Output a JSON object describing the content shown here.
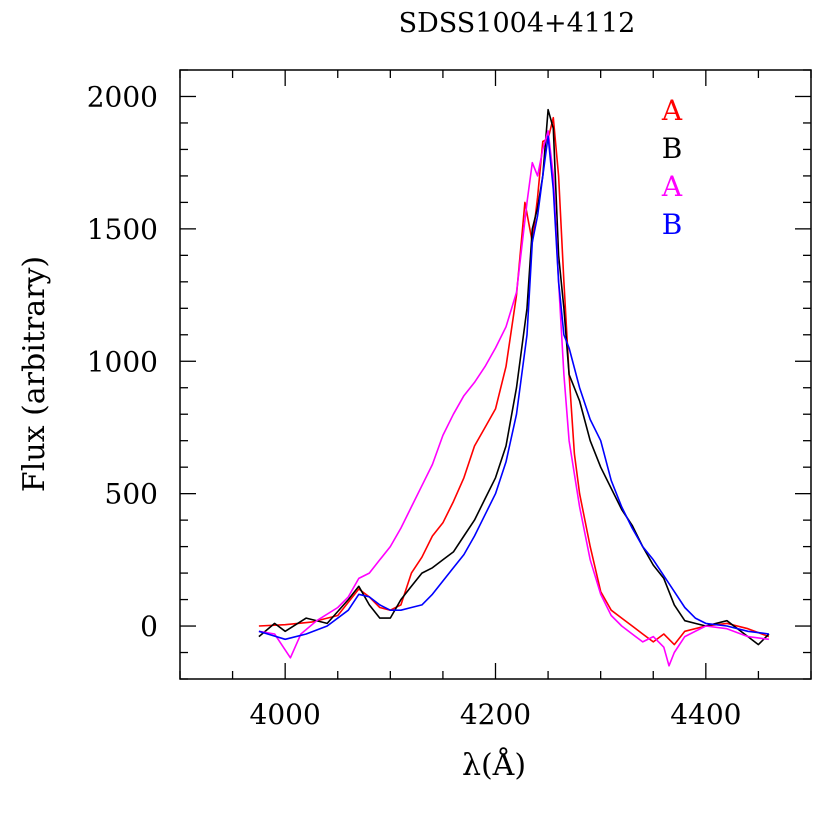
{
  "chart_data": {
    "type": "line",
    "title": "SDSS1004+4112",
    "xlabel": "λ(Å)",
    "ylabel": "Flux (arbitrary)",
    "xlim": [
      3900,
      4500
    ],
    "ylim": [
      -200,
      2100
    ],
    "x_ticks": [
      4000,
      4200,
      4400
    ],
    "y_ticks": [
      0,
      500,
      1000,
      1500,
      2000
    ],
    "x_minor_step": 50,
    "y_minor_step": 100,
    "grid": false,
    "legend_placement": "top-right",
    "series": [
      {
        "name": "A",
        "color": "#ff0000",
        "points": [
          [
            3975,
            0
          ],
          [
            4000,
            5
          ],
          [
            4025,
            15
          ],
          [
            4050,
            40
          ],
          [
            4070,
            140
          ],
          [
            4080,
            110
          ],
          [
            4090,
            70
          ],
          [
            4100,
            60
          ],
          [
            4110,
            80
          ],
          [
            4120,
            200
          ],
          [
            4130,
            260
          ],
          [
            4140,
            340
          ],
          [
            4150,
            390
          ],
          [
            4160,
            470
          ],
          [
            4170,
            560
          ],
          [
            4180,
            680
          ],
          [
            4190,
            750
          ],
          [
            4200,
            820
          ],
          [
            4210,
            980
          ],
          [
            4220,
            1250
          ],
          [
            4228,
            1600
          ],
          [
            4235,
            1450
          ],
          [
            4240,
            1620
          ],
          [
            4245,
            1830
          ],
          [
            4250,
            1840
          ],
          [
            4255,
            1920
          ],
          [
            4260,
            1700
          ],
          [
            4265,
            1300
          ],
          [
            4270,
            950
          ],
          [
            4275,
            650
          ],
          [
            4280,
            500
          ],
          [
            4290,
            300
          ],
          [
            4300,
            130
          ],
          [
            4310,
            60
          ],
          [
            4320,
            30
          ],
          [
            4330,
            0
          ],
          [
            4340,
            -30
          ],
          [
            4350,
            -60
          ],
          [
            4360,
            -30
          ],
          [
            4370,
            -70
          ],
          [
            4380,
            -20
          ],
          [
            4400,
            0
          ],
          [
            4420,
            10
          ],
          [
            4440,
            -10
          ],
          [
            4460,
            -40
          ]
        ]
      },
      {
        "name": "B",
        "color": "#000000",
        "points": [
          [
            3975,
            -40
          ],
          [
            3990,
            10
          ],
          [
            4000,
            -20
          ],
          [
            4020,
            30
          ],
          [
            4040,
            10
          ],
          [
            4060,
            100
          ],
          [
            4070,
            150
          ],
          [
            4080,
            80
          ],
          [
            4090,
            30
          ],
          [
            4100,
            30
          ],
          [
            4110,
            100
          ],
          [
            4120,
            150
          ],
          [
            4130,
            200
          ],
          [
            4140,
            220
          ],
          [
            4150,
            250
          ],
          [
            4160,
            280
          ],
          [
            4170,
            340
          ],
          [
            4180,
            400
          ],
          [
            4190,
            480
          ],
          [
            4200,
            560
          ],
          [
            4210,
            680
          ],
          [
            4220,
            900
          ],
          [
            4230,
            1200
          ],
          [
            4235,
            1500
          ],
          [
            4240,
            1580
          ],
          [
            4245,
            1700
          ],
          [
            4250,
            1950
          ],
          [
            4255,
            1880
          ],
          [
            4260,
            1400
          ],
          [
            4265,
            1200
          ],
          [
            4270,
            950
          ],
          [
            4280,
            850
          ],
          [
            4290,
            700
          ],
          [
            4300,
            600
          ],
          [
            4310,
            520
          ],
          [
            4320,
            440
          ],
          [
            4330,
            380
          ],
          [
            4340,
            300
          ],
          [
            4350,
            230
          ],
          [
            4360,
            180
          ],
          [
            4370,
            80
          ],
          [
            4380,
            20
          ],
          [
            4390,
            10
          ],
          [
            4400,
            0
          ],
          [
            4420,
            20
          ],
          [
            4440,
            -40
          ],
          [
            4450,
            -70
          ],
          [
            4460,
            -30
          ]
        ]
      },
      {
        "name": "A",
        "color": "#ff00ff",
        "points": [
          [
            3975,
            -20
          ],
          [
            3990,
            -30
          ],
          [
            4005,
            -120
          ],
          [
            4015,
            -30
          ],
          [
            4030,
            20
          ],
          [
            4050,
            70
          ],
          [
            4060,
            110
          ],
          [
            4070,
            180
          ],
          [
            4080,
            200
          ],
          [
            4090,
            250
          ],
          [
            4100,
            300
          ],
          [
            4110,
            370
          ],
          [
            4120,
            450
          ],
          [
            4130,
            530
          ],
          [
            4140,
            610
          ],
          [
            4150,
            720
          ],
          [
            4160,
            800
          ],
          [
            4170,
            870
          ],
          [
            4180,
            920
          ],
          [
            4190,
            980
          ],
          [
            4200,
            1050
          ],
          [
            4210,
            1130
          ],
          [
            4220,
            1260
          ],
          [
            4230,
            1600
          ],
          [
            4235,
            1750
          ],
          [
            4240,
            1700
          ],
          [
            4245,
            1800
          ],
          [
            4250,
            1870
          ],
          [
            4255,
            1700
          ],
          [
            4260,
            1300
          ],
          [
            4265,
            950
          ],
          [
            4270,
            700
          ],
          [
            4280,
            450
          ],
          [
            4290,
            250
          ],
          [
            4300,
            120
          ],
          [
            4310,
            40
          ],
          [
            4320,
            0
          ],
          [
            4330,
            -30
          ],
          [
            4340,
            -60
          ],
          [
            4350,
            -40
          ],
          [
            4360,
            -80
          ],
          [
            4365,
            -150
          ],
          [
            4370,
            -100
          ],
          [
            4380,
            -40
          ],
          [
            4400,
            0
          ],
          [
            4420,
            -10
          ],
          [
            4440,
            -40
          ],
          [
            4460,
            -50
          ]
        ]
      },
      {
        "name": "B",
        "color": "#0000ff",
        "points": [
          [
            3975,
            -20
          ],
          [
            4000,
            -50
          ],
          [
            4020,
            -30
          ],
          [
            4040,
            0
          ],
          [
            4060,
            60
          ],
          [
            4070,
            120
          ],
          [
            4080,
            110
          ],
          [
            4090,
            80
          ],
          [
            4100,
            60
          ],
          [
            4110,
            60
          ],
          [
            4120,
            70
          ],
          [
            4130,
            80
          ],
          [
            4140,
            120
          ],
          [
            4150,
            170
          ],
          [
            4160,
            220
          ],
          [
            4170,
            270
          ],
          [
            4180,
            340
          ],
          [
            4190,
            420
          ],
          [
            4200,
            500
          ],
          [
            4210,
            620
          ],
          [
            4220,
            800
          ],
          [
            4230,
            1100
          ],
          [
            4235,
            1450
          ],
          [
            4240,
            1550
          ],
          [
            4245,
            1700
          ],
          [
            4250,
            1850
          ],
          [
            4255,
            1650
          ],
          [
            4260,
            1300
          ],
          [
            4265,
            1100
          ],
          [
            4270,
            1050
          ],
          [
            4280,
            900
          ],
          [
            4290,
            780
          ],
          [
            4300,
            700
          ],
          [
            4310,
            550
          ],
          [
            4320,
            450
          ],
          [
            4330,
            370
          ],
          [
            4340,
            300
          ],
          [
            4350,
            250
          ],
          [
            4360,
            190
          ],
          [
            4370,
            130
          ],
          [
            4380,
            70
          ],
          [
            4390,
            30
          ],
          [
            4400,
            10
          ],
          [
            4420,
            0
          ],
          [
            4440,
            -20
          ],
          [
            4460,
            -30
          ]
        ]
      }
    ]
  }
}
